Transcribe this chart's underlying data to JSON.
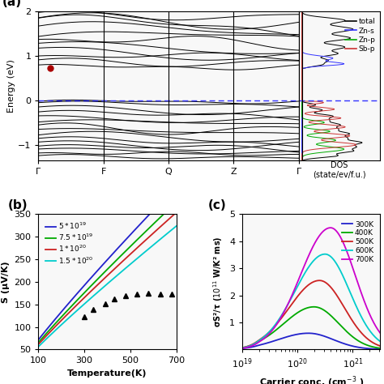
{
  "panel_a": {
    "kpoints": [
      "Γ",
      "F",
      "Q",
      "Z",
      "Γ"
    ],
    "k_positions": [
      0,
      1,
      2,
      3,
      4
    ],
    "energy_range": [
      -1.35,
      2.0
    ],
    "fermi_level": 0.0,
    "cbm_marker": {
      "k": 0.18,
      "E": 0.72,
      "color": "#aa0000"
    },
    "legend": {
      "total": "#000000",
      "Zn-s": "#3333ff",
      "Zn-p": "#00aa00",
      "Sb-p": "#cc3333"
    },
    "dos_xlabel": "DOS\n(state/ev/f.u.)"
  },
  "panel_b": {
    "xlabel": "Temperature(K)",
    "ylabel": "S (μV/K)",
    "xlim": [
      100,
      700
    ],
    "ylim": [
      50,
      350
    ],
    "xticks": [
      100,
      300,
      500,
      700
    ],
    "yticks": [
      50,
      100,
      150,
      200,
      250,
      300,
      350
    ],
    "curve_colors": [
      "#2222cc",
      "#00aa00",
      "#cc2222",
      "#00cccc"
    ],
    "curve_labels": [
      "5 * 10^{19}",
      "7.5 * 10^{19}",
      "1 * 10^{20}",
      "1.5 * 10^{20}"
    ],
    "n_values": [
      5e+19,
      7.5e+19,
      1e+20,
      1.5e+20
    ],
    "exp_T": [
      300,
      340,
      390,
      430,
      480,
      530,
      580,
      630,
      680
    ],
    "exp_S": [
      122,
      138,
      152,
      162,
      170,
      172,
      174,
      173,
      172
    ]
  },
  "panel_c": {
    "xlabel": "Carrier conc. (cm$^{-3}$ )",
    "ylabel": "σS²/τ (10¹¹ W/K² ms)",
    "xlim_log": [
      19,
      21.5
    ],
    "ylim": [
      0,
      5
    ],
    "yticks": [
      1,
      2,
      3,
      4,
      5
    ],
    "curve_colors": [
      "#2222cc",
      "#00aa00",
      "#cc2222",
      "#00cccc",
      "#cc00cc"
    ],
    "curve_labels": [
      "300K",
      "400K",
      "500K",
      "600K",
      "700K"
    ],
    "temps": [
      300,
      400,
      500,
      600,
      700
    ]
  }
}
